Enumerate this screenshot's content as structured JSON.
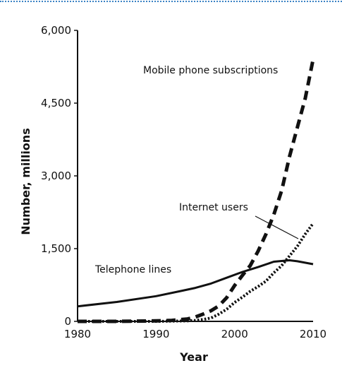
{
  "chart_data": {
    "type": "line",
    "title": "",
    "xlabel": "Year",
    "ylabel": "Number, millions",
    "xlim": [
      1980,
      2010
    ],
    "ylim": [
      0,
      6000
    ],
    "xticks": [
      1980,
      1990,
      2000,
      2010
    ],
    "xtick_labels": [
      "1980",
      "1990",
      "2000",
      "2010"
    ],
    "yticks": [
      0,
      1500,
      3000,
      4500,
      6000
    ],
    "ytick_labels": [
      "0",
      "1,500",
      "3,000",
      "4,500",
      "6,000"
    ],
    "grid": false,
    "legend": "none",
    "series": [
      {
        "name": "Telephone lines",
        "style": "solid",
        "color": "#111111",
        "x": [
          1980,
          1985,
          1990,
          1993,
          1995,
          1997,
          1999,
          2001,
          2003,
          2005,
          2007,
          2008,
          2010
        ],
        "values": [
          310,
          400,
          520,
          620,
          690,
          780,
          900,
          1020,
          1120,
          1230,
          1260,
          1240,
          1180
        ]
      },
      {
        "name": "Mobile phone subscriptions",
        "style": "dashed",
        "color": "#111111",
        "x": [
          1980,
          1985,
          1990,
          1992,
          1994,
          1995,
          1996,
          1997,
          1998,
          1999,
          2000,
          2001,
          2002,
          2003,
          2004,
          2005,
          2006,
          2007,
          2008,
          2009,
          2010
        ],
        "values": [
          0,
          0,
          10,
          20,
          50,
          90,
          150,
          220,
          320,
          490,
          740,
          950,
          1150,
          1450,
          1800,
          2200,
          2700,
          3400,
          4000,
          4600,
          5400
        ]
      },
      {
        "name": "Internet users",
        "style": "dotted",
        "color": "#111111",
        "x": [
          1980,
          1990,
          1994,
          1995,
          1996,
          1997,
          1998,
          1999,
          2000,
          2001,
          2002,
          2003,
          2004,
          2005,
          2006,
          2007,
          2008,
          2009,
          2010
        ],
        "values": [
          0,
          0,
          10,
          20,
          40,
          70,
          150,
          250,
          390,
          500,
          620,
          720,
          830,
          1000,
          1150,
          1350,
          1550,
          1800,
          2020
        ]
      }
    ],
    "annotations": [
      {
        "text": "Mobile phone subscriptions",
        "series": "Mobile phone subscriptions"
      },
      {
        "text": "Internet users",
        "series": "Internet users"
      },
      {
        "text": "Telephone lines",
        "series": "Telephone lines"
      }
    ]
  }
}
